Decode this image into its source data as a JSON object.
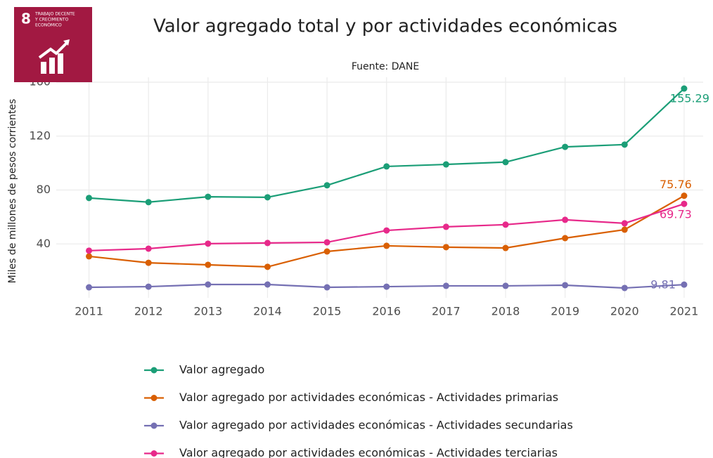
{
  "logo": {
    "number": "8",
    "text": [
      "TRABAJO DECENTE",
      "Y CRECIMIENTO",
      "ECONÓMICO"
    ]
  },
  "chart_data": {
    "type": "line",
    "title": "Valor agregado total y por actividades económicas",
    "subtitle": "Fuente: DANE",
    "y_label": "Miles de millones de pesos corrientes",
    "x": [
      2011,
      2012,
      2013,
      2014,
      2015,
      2016,
      2017,
      2018,
      2019,
      2020,
      2021
    ],
    "xlim": [
      2010.45,
      2021.32
    ],
    "xticks": [
      2011,
      2012,
      2013,
      2014,
      2015,
      2016,
      2017,
      2018,
      2019,
      2020,
      2021
    ],
    "ylim": [
      0,
      160
    ],
    "yticks": [
      40,
      80,
      120,
      160
    ],
    "grid": true,
    "series": [
      {
        "name": "Valor agregado",
        "color": "#1b9e77",
        "values": [
          74.1,
          71,
          75,
          74.6,
          83.5,
          97.5,
          99,
          100.7,
          112,
          113.7,
          155.29
        ]
      },
      {
        "name": "Valor agregado por actividades económicas - Actividades primarias",
        "color": "#d95f02",
        "values": [
          30.8,
          26,
          24.5,
          23,
          34.4,
          38.6,
          37.6,
          37,
          44.3,
          50.6,
          75.76
        ]
      },
      {
        "name": "Valor agregado por actividades económicas - Actividades secundarias",
        "color": "#7570b3",
        "values": [
          7.8,
          8.3,
          9.9,
          9.9,
          7.8,
          8.3,
          8.9,
          8.9,
          9.4,
          7.3,
          9.81
        ]
      },
      {
        "name": "Valor agregado por actividades económicas - Actividades terciarias",
        "color": "#e7298a",
        "values": [
          35,
          36.5,
          40.2,
          40.7,
          41.2,
          50,
          52.7,
          54.3,
          57.9,
          55.3,
          69.73
        ]
      }
    ]
  }
}
